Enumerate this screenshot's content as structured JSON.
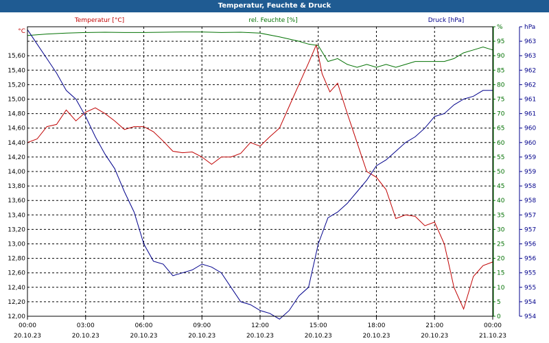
{
  "window": {
    "title": "Temperatur, Feuchte & Druck"
  },
  "colors": {
    "temp": "#c00000",
    "hum": "#007000",
    "press": "#00008b",
    "grid": "#000000"
  },
  "chart_data": {
    "type": "line",
    "title": "Temperatur, Feuchte & Druck",
    "x_ticks": [
      {
        "time": "00:00",
        "date": "20.10.23"
      },
      {
        "time": "03:00",
        "date": "20.10.23"
      },
      {
        "time": "06:00",
        "date": "20.10.23"
      },
      {
        "time": "09:00",
        "date": "20.10.23"
      },
      {
        "time": "12:00",
        "date": "20.10.23"
      },
      {
        "time": "15:00",
        "date": "20.10.23"
      },
      {
        "time": "18:00",
        "date": "20.10.23"
      },
      {
        "time": "21:00",
        "date": "20.10.23"
      },
      {
        "time": "00:00",
        "date": "21.10.23"
      }
    ],
    "x_hours": [
      0,
      24
    ],
    "axes": {
      "temp": {
        "unit": "°C",
        "label": "Temperatur [°C]",
        "range": [
          12.0,
          16.0
        ],
        "ticks": [
          "12,00",
          "12,20",
          "12,40",
          "12,60",
          "12,80",
          "13,00",
          "13,20",
          "13,40",
          "13,60",
          "13,80",
          "14,00",
          "14,20",
          "14,40",
          "14,60",
          "14,80",
          "15,00",
          "15,20",
          "15,40",
          "15,60"
        ]
      },
      "hum": {
        "unit": "%",
        "label": "rel. Feuchte [%]",
        "range": [
          0,
          100
        ],
        "ticks": [
          "0",
          "5",
          "10",
          "15",
          "20",
          "25",
          "30",
          "35",
          "40",
          "45",
          "50",
          "55",
          "60",
          "65",
          "70",
          "75",
          "80",
          "85",
          "90",
          "95",
          "%"
        ]
      },
      "press": {
        "unit": "hPa",
        "label": "Druck [hPa]",
        "range": [
          954,
          964
        ],
        "ticks": [
          "954",
          "954",
          "955",
          "955",
          "956",
          "956",
          "957",
          "957",
          "958",
          "958",
          "959",
          "959",
          "960",
          "960",
          "961",
          "961",
          "962",
          "962",
          "963",
          "963",
          "hPa"
        ]
      }
    },
    "series": [
      {
        "name": "Temperatur [°C]",
        "axis": "temp",
        "color": "#c00000",
        "x": [
          0,
          0.5,
          1,
          1.5,
          2,
          2.5,
          3,
          3.5,
          4,
          4.5,
          5,
          5.5,
          6,
          6.5,
          7,
          7.5,
          8,
          8.5,
          9,
          9.5,
          10,
          10.5,
          11,
          11.5,
          12,
          12.5,
          13,
          13.5,
          14,
          14.5,
          14.9,
          15.2,
          15.6,
          16,
          16.5,
          17,
          17.5,
          18,
          18.5,
          19,
          19.5,
          20,
          20.5,
          21,
          21.5,
          22,
          22.5,
          23,
          23.5,
          24
        ],
        "y": [
          14.4,
          14.45,
          14.62,
          14.65,
          14.85,
          14.7,
          14.82,
          14.88,
          14.8,
          14.7,
          14.58,
          14.62,
          14.62,
          14.55,
          14.42,
          14.28,
          14.26,
          14.27,
          14.2,
          14.1,
          14.2,
          14.2,
          14.25,
          14.4,
          14.35,
          14.48,
          14.6,
          14.9,
          15.2,
          15.5,
          15.75,
          15.35,
          15.1,
          15.22,
          14.8,
          14.4,
          14.0,
          13.92,
          13.75,
          13.35,
          13.4,
          13.38,
          13.25,
          13.3,
          13.0,
          12.4,
          12.1,
          12.55,
          12.7,
          12.75
        ]
      },
      {
        "name": "rel. Feuchte [%]",
        "axis": "hum",
        "color": "#007000",
        "x": [
          0,
          1,
          2,
          3,
          4,
          5,
          6,
          7,
          8,
          9,
          10,
          11,
          12,
          13,
          14,
          14.5,
          15,
          15.5,
          16,
          16.5,
          17,
          17.5,
          18,
          18.5,
          19,
          19.5,
          20,
          20.5,
          21,
          21.5,
          22,
          22.5,
          23,
          23.5,
          24
        ],
        "y": [
          97,
          97.5,
          97.8,
          98,
          98.1,
          98,
          98,
          98.1,
          98.2,
          98.2,
          98,
          98.1,
          97.8,
          96.5,
          95,
          94,
          93.5,
          88,
          89,
          87,
          86,
          87,
          86,
          87,
          86,
          87,
          88,
          88,
          88,
          88,
          89,
          91,
          92,
          93,
          92
        ]
      },
      {
        "name": "Druck [hPa]",
        "axis": "press",
        "color": "#00008b",
        "x": [
          0,
          0.5,
          1,
          1.5,
          2,
          2.5,
          3,
          3.5,
          4,
          4.5,
          5,
          5.5,
          6,
          6.5,
          7,
          7.5,
          8,
          8.5,
          9,
          9.5,
          10,
          10.5,
          11,
          11.5,
          12,
          12.5,
          13,
          13.5,
          14,
          14.5,
          15,
          15.5,
          16,
          16.5,
          17,
          17.5,
          18,
          18.5,
          19,
          19.5,
          20,
          20.5,
          21,
          21.5,
          22,
          22.5,
          23,
          23.5,
          24
        ],
        "y": [
          963.9,
          963.4,
          962.9,
          962.4,
          961.8,
          961.5,
          960.9,
          960.2,
          959.6,
          959.1,
          958.3,
          957.6,
          956.5,
          955.9,
          955.8,
          955.4,
          955.5,
          955.6,
          955.8,
          955.7,
          955.5,
          955.0,
          954.5,
          954.4,
          954.2,
          954.1,
          953.9,
          954.2,
          954.7,
          955.0,
          956.5,
          957.4,
          957.6,
          957.9,
          958.3,
          958.7,
          959.2,
          959.4,
          959.7,
          960.0,
          960.2,
          960.5,
          960.9,
          961.0,
          961.3,
          961.5,
          961.6,
          961.8,
          961.8
        ]
      }
    ],
    "grid": true
  }
}
